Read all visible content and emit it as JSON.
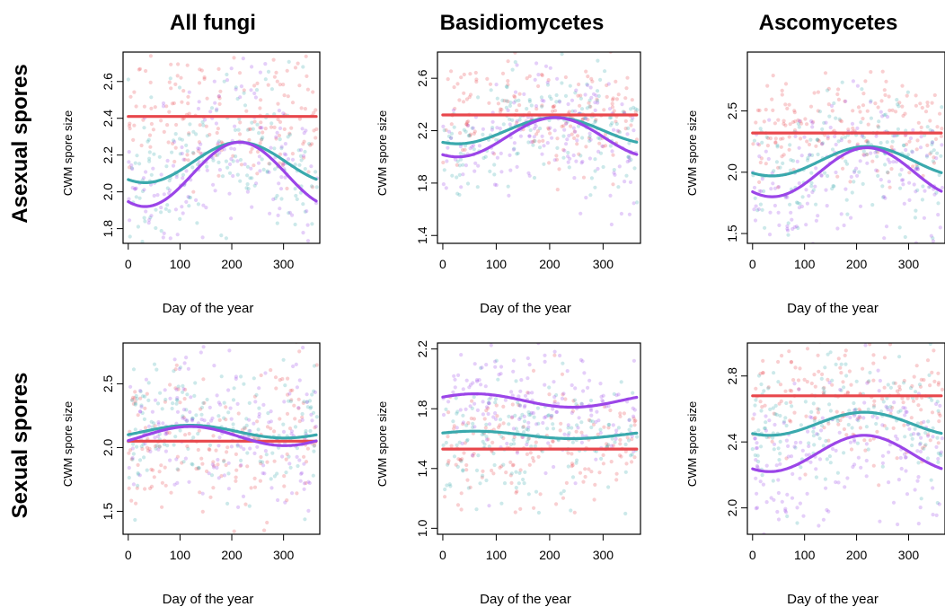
{
  "column_titles": [
    "All fungi",
    "Basidiomycetes",
    "Ascomycetes"
  ],
  "row_titles": [
    "Asexual spores",
    "Sexual spores"
  ],
  "colors": {
    "red": "#e8474c",
    "teal": "#3aa9ad",
    "purple": "#9b45e8"
  },
  "chart_data": [
    {
      "type": "scatter",
      "row": 0,
      "col": 0,
      "xlabel": "Day of the year",
      "ylabel": "CWM  spore size",
      "xlim": [
        -10,
        370
      ],
      "ylim": [
        1.72,
        2.76
      ],
      "xticks": [
        0,
        100,
        200,
        300
      ],
      "yticks": [
        1.8,
        2.0,
        2.2,
        2.4,
        2.6
      ],
      "ytick_labels": [
        "1.8",
        "2.0",
        "2.2",
        "2.4",
        "2.6"
      ],
      "series": [
        {
          "color": "red",
          "mean": 2.41,
          "amp": 0.0,
          "peak": 0,
          "sd": 0.17,
          "x": [
            0,
            365
          ],
          "y": [
            2.41,
            2.41
          ]
        },
        {
          "color": "teal",
          "mean": 2.16,
          "amp": 0.11,
          "peak": 215,
          "sd": 0.2,
          "x": [
            0,
            40,
            100,
            160,
            215,
            270,
            330,
            365
          ],
          "y": [
            2.06,
            2.05,
            2.11,
            2.21,
            2.27,
            2.22,
            2.12,
            2.07
          ]
        },
        {
          "color": "purple",
          "mean": 2.095,
          "amp": 0.175,
          "peak": 215,
          "sd": 0.22,
          "x": [
            0,
            40,
            100,
            160,
            215,
            270,
            330,
            365
          ],
          "y": [
            1.94,
            1.92,
            2.02,
            2.18,
            2.27,
            2.2,
            2.03,
            1.95
          ]
        }
      ]
    },
    {
      "type": "scatter",
      "row": 0,
      "col": 1,
      "xlabel": "Day of the year",
      "ylabel": "CWM  spore size",
      "xlim": [
        -10,
        370
      ],
      "ylim": [
        1.34,
        2.8
      ],
      "xticks": [
        0,
        100,
        200,
        300
      ],
      "yticks": [
        1.4,
        1.8,
        2.2,
        2.6
      ],
      "ytick_labels": [
        "1.4",
        "1.8",
        "2.2",
        "2.6"
      ],
      "series": [
        {
          "color": "red",
          "mean": 2.32,
          "amp": 0.0,
          "peak": 0,
          "sd": 0.2,
          "x": [
            0,
            365
          ],
          "y": [
            2.32,
            2.32
          ]
        },
        {
          "color": "teal",
          "mean": 2.2,
          "amp": 0.1,
          "peak": 210,
          "sd": 0.22,
          "x": [
            0,
            40,
            100,
            160,
            210,
            270,
            330,
            365
          ],
          "y": [
            2.1,
            2.09,
            2.15,
            2.26,
            2.3,
            2.25,
            2.15,
            2.1
          ]
        },
        {
          "color": "purple",
          "mean": 2.15,
          "amp": 0.15,
          "peak": 210,
          "sd": 0.24,
          "x": [
            0,
            40,
            100,
            160,
            210,
            270,
            330,
            365
          ],
          "y": [
            2.01,
            1.99,
            2.09,
            2.24,
            2.3,
            2.23,
            2.08,
            2.01
          ]
        }
      ]
    },
    {
      "type": "scatter",
      "row": 0,
      "col": 2,
      "xlabel": "Day of the year",
      "ylabel": "CWM  spore size",
      "xlim": [
        -10,
        370
      ],
      "ylim": [
        1.42,
        2.98
      ],
      "xticks": [
        0,
        100,
        200,
        300
      ],
      "yticks": [
        1.5,
        2.0,
        2.5
      ],
      "ytick_labels": [
        "1.5",
        "2.0",
        "2.5"
      ],
      "series": [
        {
          "color": "red",
          "mean": 2.32,
          "amp": 0.0,
          "peak": 0,
          "sd": 0.22,
          "x": [
            0,
            365
          ],
          "y": [
            2.32,
            2.32
          ]
        },
        {
          "color": "teal",
          "mean": 2.09,
          "amp": 0.12,
          "peak": 220,
          "sd": 0.25,
          "x": [
            0,
            40,
            100,
            160,
            220,
            280,
            330,
            365
          ],
          "y": [
            1.99,
            1.97,
            2.04,
            2.16,
            2.21,
            2.15,
            2.07,
            2.0
          ]
        },
        {
          "color": "purple",
          "mean": 2.0,
          "amp": 0.2,
          "peak": 220,
          "sd": 0.27,
          "x": [
            0,
            40,
            100,
            160,
            220,
            280,
            330,
            365
          ],
          "y": [
            1.84,
            1.8,
            1.92,
            2.12,
            2.2,
            2.1,
            1.95,
            1.84
          ]
        }
      ]
    },
    {
      "type": "scatter",
      "row": 1,
      "col": 0,
      "xlabel": "Day of the year",
      "ylabel": "CWM  spore size",
      "xlim": [
        -10,
        370
      ],
      "ylim": [
        1.32,
        2.82
      ],
      "xticks": [
        0,
        100,
        200,
        300
      ],
      "yticks": [
        1.5,
        2.0,
        2.5
      ],
      "ytick_labels": [
        "1.5",
        "2.0",
        "2.5"
      ],
      "series": [
        {
          "color": "red",
          "mean": 2.05,
          "amp": 0.0,
          "peak": 0,
          "sd": 0.3,
          "x": [
            0,
            365
          ],
          "y": [
            2.05,
            2.05
          ]
        },
        {
          "color": "teal",
          "mean": 2.125,
          "amp": 0.05,
          "peak": 120,
          "sd": 0.28,
          "x": [
            0,
            60,
            120,
            180,
            240,
            300,
            365
          ],
          "y": [
            2.1,
            2.15,
            2.17,
            2.14,
            2.09,
            2.07,
            2.09
          ]
        },
        {
          "color": "purple",
          "mean": 2.09,
          "amp": 0.075,
          "peak": 120,
          "sd": 0.3,
          "x": [
            0,
            60,
            120,
            180,
            240,
            300,
            365
          ],
          "y": [
            2.08,
            2.15,
            2.17,
            2.13,
            2.05,
            2.01,
            2.05
          ]
        }
      ]
    },
    {
      "type": "scatter",
      "row": 1,
      "col": 1,
      "xlabel": "Day of the year",
      "ylabel": "CWM  spore size",
      "xlim": [
        -10,
        370
      ],
      "ylim": [
        0.96,
        2.24
      ],
      "xticks": [
        0,
        100,
        200,
        300
      ],
      "yticks": [
        1.0,
        1.4,
        1.8,
        2.2
      ],
      "ytick_labels": [
        "1.0",
        "1.4",
        "1.8",
        "2.2"
      ],
      "series": [
        {
          "color": "red",
          "mean": 1.53,
          "amp": 0.0,
          "peak": 0,
          "sd": 0.2,
          "x": [
            0,
            365
          ],
          "y": [
            1.53,
            1.53
          ]
        },
        {
          "color": "teal",
          "mean": 1.625,
          "amp": 0.025,
          "peak": 60,
          "sd": 0.2,
          "x": [
            0,
            60,
            120,
            180,
            240,
            300,
            365
          ],
          "y": [
            1.65,
            1.65,
            1.63,
            1.61,
            1.6,
            1.62,
            1.65
          ]
        },
        {
          "color": "purple",
          "mean": 1.855,
          "amp": 0.045,
          "peak": 60,
          "sd": 0.22,
          "x": [
            0,
            60,
            120,
            180,
            240,
            300,
            365
          ],
          "y": [
            1.89,
            1.9,
            1.87,
            1.83,
            1.81,
            1.83,
            1.88
          ]
        }
      ]
    },
    {
      "type": "scatter",
      "row": 1,
      "col": 2,
      "xlabel": "Day of the year",
      "ylabel": "CWM  spore size",
      "xlim": [
        -10,
        370
      ],
      "ylim": [
        1.84,
        3.0
      ],
      "xticks": [
        0,
        100,
        200,
        300
      ],
      "yticks": [
        2.0,
        2.4,
        2.8
      ],
      "ytick_labels": [
        "2.0",
        "2.4",
        "2.8"
      ],
      "series": [
        {
          "color": "red",
          "mean": 2.68,
          "amp": 0.0,
          "peak": 0,
          "sd": 0.18,
          "x": [
            0,
            365
          ],
          "y": [
            2.68,
            2.68
          ]
        },
        {
          "color": "teal",
          "mean": 2.51,
          "amp": 0.07,
          "peak": 215,
          "sd": 0.2,
          "x": [
            0,
            40,
            100,
            160,
            215,
            280,
            330,
            365
          ],
          "y": [
            2.45,
            2.44,
            2.49,
            2.55,
            2.58,
            2.54,
            2.49,
            2.45
          ]
        },
        {
          "color": "purple",
          "mean": 2.33,
          "amp": 0.11,
          "peak": 215,
          "sd": 0.22,
          "x": [
            0,
            40,
            100,
            160,
            215,
            280,
            330,
            365
          ],
          "y": [
            2.23,
            2.22,
            2.29,
            2.4,
            2.44,
            2.38,
            2.29,
            2.24
          ]
        }
      ]
    }
  ]
}
